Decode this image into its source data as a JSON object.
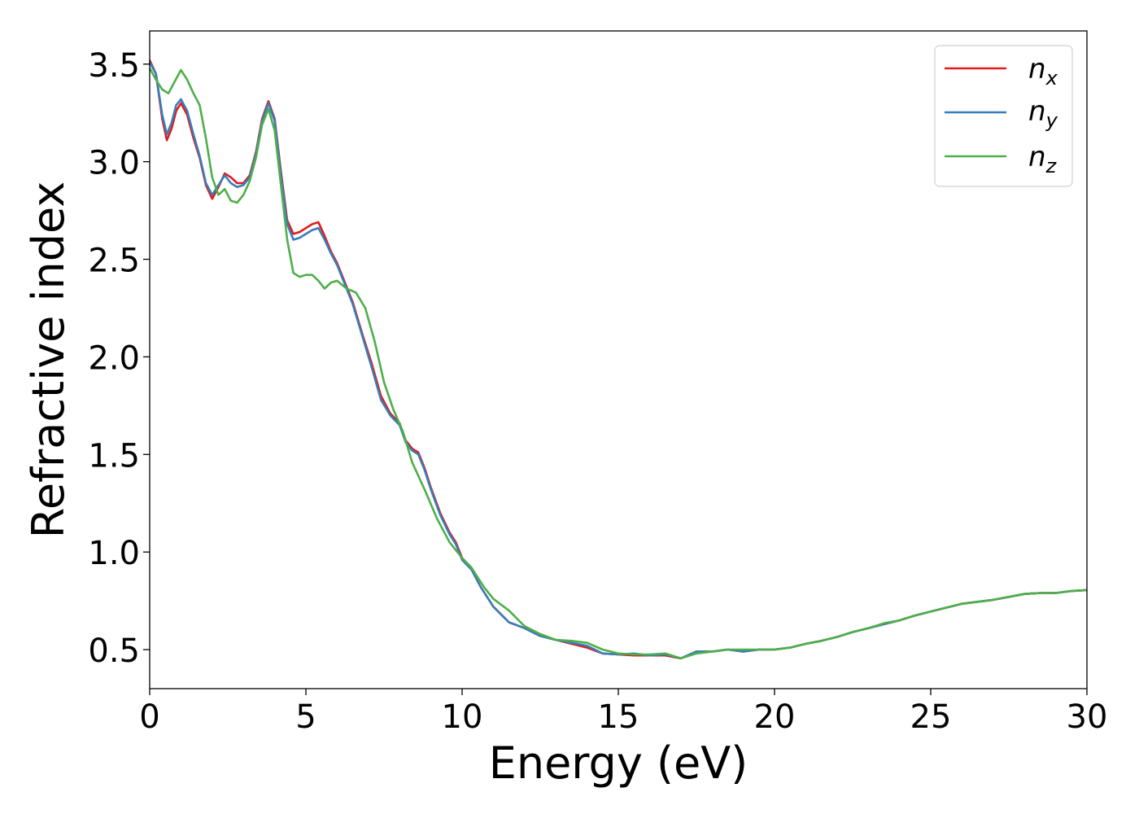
{
  "chart_data": {
    "type": "line",
    "xlabel": "Energy (eV)",
    "ylabel": "Refractive index",
    "xlim": [
      0,
      30
    ],
    "ylim": [
      0.3,
      3.67
    ],
    "xticks": [
      "0",
      "5",
      "10",
      "15",
      "20",
      "25",
      "30"
    ],
    "yticks": [
      "0.5",
      "1.0",
      "1.5",
      "2.0",
      "2.5",
      "3.0",
      "3.5"
    ],
    "grid": false,
    "legend_position": "top-right",
    "series": [
      {
        "name": "n_x",
        "color": "#e41a1c",
        "points": [
          [
            0,
            3.52
          ],
          [
            0.2,
            3.45
          ],
          [
            0.4,
            3.22
          ],
          [
            0.55,
            3.11
          ],
          [
            0.7,
            3.17
          ],
          [
            0.85,
            3.26
          ],
          [
            1.0,
            3.3
          ],
          [
            1.2,
            3.24
          ],
          [
            1.4,
            3.12
          ],
          [
            1.6,
            3.02
          ],
          [
            1.8,
            2.88
          ],
          [
            2.0,
            2.81
          ],
          [
            2.2,
            2.87
          ],
          [
            2.4,
            2.94
          ],
          [
            2.6,
            2.92
          ],
          [
            2.8,
            2.89
          ],
          [
            3.0,
            2.89
          ],
          [
            3.2,
            2.93
          ],
          [
            3.4,
            3.05
          ],
          [
            3.6,
            3.22
          ],
          [
            3.8,
            3.31
          ],
          [
            4.0,
            3.22
          ],
          [
            4.2,
            2.95
          ],
          [
            4.4,
            2.7
          ],
          [
            4.6,
            2.63
          ],
          [
            4.8,
            2.64
          ],
          [
            5.0,
            2.66
          ],
          [
            5.2,
            2.68
          ],
          [
            5.4,
            2.69
          ],
          [
            5.6,
            2.62
          ],
          [
            5.8,
            2.54
          ],
          [
            6.0,
            2.48
          ],
          [
            6.2,
            2.4
          ],
          [
            6.5,
            2.28
          ],
          [
            6.8,
            2.12
          ],
          [
            7.1,
            1.97
          ],
          [
            7.4,
            1.8
          ],
          [
            7.7,
            1.71
          ],
          [
            8.0,
            1.66
          ],
          [
            8.2,
            1.57
          ],
          [
            8.4,
            1.53
          ],
          [
            8.6,
            1.51
          ],
          [
            8.8,
            1.43
          ],
          [
            9.0,
            1.33
          ],
          [
            9.3,
            1.2
          ],
          [
            9.6,
            1.1
          ],
          [
            9.8,
            1.05
          ],
          [
            10.0,
            0.97
          ],
          [
            10.3,
            0.91
          ],
          [
            10.6,
            0.82
          ],
          [
            11.0,
            0.72
          ],
          [
            11.5,
            0.64
          ],
          [
            12.0,
            0.61
          ],
          [
            12.5,
            0.57
          ],
          [
            13.0,
            0.55
          ],
          [
            13.5,
            0.53
          ],
          [
            14.0,
            0.51
          ],
          [
            14.5,
            0.48
          ],
          [
            15.0,
            0.475
          ],
          [
            15.5,
            0.47
          ],
          [
            16.0,
            0.47
          ],
          [
            16.5,
            0.47
          ],
          [
            17.0,
            0.455
          ],
          [
            17.5,
            0.49
          ],
          [
            18.0,
            0.49
          ],
          [
            18.5,
            0.5
          ],
          [
            19.0,
            0.49
          ],
          [
            19.5,
            0.5
          ],
          [
            20.0,
            0.5
          ],
          [
            20.5,
            0.51
          ],
          [
            21.0,
            0.53
          ],
          [
            21.5,
            0.545
          ],
          [
            22.0,
            0.565
          ],
          [
            22.5,
            0.59
          ],
          [
            23.0,
            0.61
          ],
          [
            23.5,
            0.63
          ],
          [
            24.0,
            0.65
          ],
          [
            24.5,
            0.675
          ],
          [
            25.0,
            0.695
          ],
          [
            25.5,
            0.715
          ],
          [
            26.0,
            0.735
          ],
          [
            26.5,
            0.745
          ],
          [
            27.0,
            0.755
          ],
          [
            27.5,
            0.77
          ],
          [
            28.0,
            0.785
          ],
          [
            28.5,
            0.79
          ],
          [
            29.0,
            0.79
          ],
          [
            29.5,
            0.8
          ],
          [
            30.0,
            0.805
          ]
        ]
      },
      {
        "name": "n_y",
        "color": "#377eb8",
        "points": [
          [
            0,
            3.51
          ],
          [
            0.2,
            3.45
          ],
          [
            0.4,
            3.24
          ],
          [
            0.55,
            3.14
          ],
          [
            0.7,
            3.2
          ],
          [
            0.85,
            3.29
          ],
          [
            1.0,
            3.32
          ],
          [
            1.2,
            3.26
          ],
          [
            1.4,
            3.14
          ],
          [
            1.6,
            3.03
          ],
          [
            1.8,
            2.89
          ],
          [
            2.0,
            2.83
          ],
          [
            2.2,
            2.88
          ],
          [
            2.4,
            2.93
          ],
          [
            2.6,
            2.89
          ],
          [
            2.8,
            2.87
          ],
          [
            3.0,
            2.88
          ],
          [
            3.2,
            2.92
          ],
          [
            3.4,
            3.04
          ],
          [
            3.6,
            3.21
          ],
          [
            3.8,
            3.3
          ],
          [
            4.0,
            3.21
          ],
          [
            4.2,
            2.93
          ],
          [
            4.4,
            2.68
          ],
          [
            4.6,
            2.6
          ],
          [
            4.8,
            2.61
          ],
          [
            5.0,
            2.63
          ],
          [
            5.2,
            2.65
          ],
          [
            5.4,
            2.66
          ],
          [
            5.6,
            2.6
          ],
          [
            5.8,
            2.53
          ],
          [
            6.0,
            2.47
          ],
          [
            6.2,
            2.39
          ],
          [
            6.5,
            2.27
          ],
          [
            6.8,
            2.11
          ],
          [
            7.1,
            1.95
          ],
          [
            7.4,
            1.78
          ],
          [
            7.7,
            1.7
          ],
          [
            8.0,
            1.65
          ],
          [
            8.2,
            1.56
          ],
          [
            8.4,
            1.52
          ],
          [
            8.6,
            1.5
          ],
          [
            8.8,
            1.42
          ],
          [
            9.0,
            1.32
          ],
          [
            9.3,
            1.19
          ],
          [
            9.6,
            1.09
          ],
          [
            9.8,
            1.04
          ],
          [
            10.0,
            0.96
          ],
          [
            10.3,
            0.91
          ],
          [
            10.6,
            0.82
          ],
          [
            11.0,
            0.72
          ],
          [
            11.5,
            0.64
          ],
          [
            12.0,
            0.61
          ],
          [
            12.5,
            0.57
          ],
          [
            13.0,
            0.55
          ],
          [
            13.5,
            0.535
          ],
          [
            14.0,
            0.52
          ],
          [
            14.5,
            0.48
          ],
          [
            15.0,
            0.475
          ],
          [
            15.5,
            0.48
          ],
          [
            16.0,
            0.47
          ],
          [
            16.5,
            0.475
          ],
          [
            17.0,
            0.455
          ],
          [
            17.5,
            0.49
          ],
          [
            18.0,
            0.49
          ],
          [
            18.5,
            0.5
          ],
          [
            19.0,
            0.49
          ],
          [
            19.5,
            0.5
          ],
          [
            20.0,
            0.5
          ],
          [
            20.5,
            0.51
          ],
          [
            21.0,
            0.53
          ],
          [
            21.5,
            0.545
          ],
          [
            22.0,
            0.565
          ],
          [
            22.5,
            0.59
          ],
          [
            23.0,
            0.61
          ],
          [
            23.5,
            0.63
          ],
          [
            24.0,
            0.65
          ],
          [
            24.5,
            0.675
          ],
          [
            25.0,
            0.695
          ],
          [
            25.5,
            0.715
          ],
          [
            26.0,
            0.735
          ],
          [
            26.5,
            0.745
          ],
          [
            27.0,
            0.755
          ],
          [
            27.5,
            0.77
          ],
          [
            28.0,
            0.785
          ],
          [
            28.5,
            0.79
          ],
          [
            29.0,
            0.79
          ],
          [
            29.5,
            0.8
          ],
          [
            30.0,
            0.805
          ]
        ]
      },
      {
        "name": "n_z",
        "color": "#4daf4a",
        "points": [
          [
            0,
            3.48
          ],
          [
            0.2,
            3.42
          ],
          [
            0.4,
            3.37
          ],
          [
            0.6,
            3.35
          ],
          [
            0.8,
            3.41
          ],
          [
            1.0,
            3.47
          ],
          [
            1.2,
            3.42
          ],
          [
            1.4,
            3.35
          ],
          [
            1.6,
            3.29
          ],
          [
            1.8,
            3.12
          ],
          [
            2.0,
            2.92
          ],
          [
            2.2,
            2.83
          ],
          [
            2.4,
            2.86
          ],
          [
            2.6,
            2.8
          ],
          [
            2.8,
            2.79
          ],
          [
            3.0,
            2.83
          ],
          [
            3.2,
            2.9
          ],
          [
            3.4,
            3.02
          ],
          [
            3.6,
            3.19
          ],
          [
            3.8,
            3.27
          ],
          [
            4.0,
            3.16
          ],
          [
            4.2,
            2.88
          ],
          [
            4.4,
            2.6
          ],
          [
            4.6,
            2.43
          ],
          [
            4.8,
            2.41
          ],
          [
            5.0,
            2.42
          ],
          [
            5.2,
            2.42
          ],
          [
            5.4,
            2.39
          ],
          [
            5.6,
            2.35
          ],
          [
            5.8,
            2.38
          ],
          [
            6.0,
            2.39
          ],
          [
            6.3,
            2.35
          ],
          [
            6.6,
            2.33
          ],
          [
            6.9,
            2.25
          ],
          [
            7.2,
            2.08
          ],
          [
            7.5,
            1.87
          ],
          [
            7.8,
            1.73
          ],
          [
            8.1,
            1.62
          ],
          [
            8.4,
            1.46
          ],
          [
            8.8,
            1.32
          ],
          [
            9.2,
            1.17
          ],
          [
            9.6,
            1.05
          ],
          [
            10.0,
            0.97
          ],
          [
            10.3,
            0.92
          ],
          [
            10.7,
            0.82
          ],
          [
            11.0,
            0.76
          ],
          [
            11.5,
            0.7
          ],
          [
            12.0,
            0.62
          ],
          [
            12.5,
            0.58
          ],
          [
            13.0,
            0.55
          ],
          [
            13.5,
            0.545
          ],
          [
            14.0,
            0.535
          ],
          [
            14.5,
            0.5
          ],
          [
            15.0,
            0.48
          ],
          [
            15.5,
            0.475
          ],
          [
            16.0,
            0.475
          ],
          [
            16.5,
            0.48
          ],
          [
            17.0,
            0.455
          ],
          [
            17.5,
            0.48
          ],
          [
            18.0,
            0.49
          ],
          [
            18.5,
            0.5
          ],
          [
            19.0,
            0.5
          ],
          [
            19.5,
            0.5
          ],
          [
            20.0,
            0.5
          ],
          [
            20.5,
            0.51
          ],
          [
            21.0,
            0.53
          ],
          [
            21.5,
            0.545
          ],
          [
            22.0,
            0.565
          ],
          [
            22.5,
            0.59
          ],
          [
            23.0,
            0.61
          ],
          [
            23.5,
            0.635
          ],
          [
            24.0,
            0.65
          ],
          [
            24.5,
            0.675
          ],
          [
            25.0,
            0.695
          ],
          [
            25.5,
            0.715
          ],
          [
            26.0,
            0.735
          ],
          [
            26.5,
            0.745
          ],
          [
            27.0,
            0.755
          ],
          [
            27.5,
            0.77
          ],
          [
            28.0,
            0.785
          ],
          [
            28.5,
            0.79
          ],
          [
            29.0,
            0.79
          ],
          [
            29.5,
            0.8
          ],
          [
            30.0,
            0.805
          ]
        ]
      }
    ]
  },
  "legend": {
    "items": [
      {
        "base": "n",
        "sub": "x",
        "color": "#e41a1c"
      },
      {
        "base": "n",
        "sub": "y",
        "color": "#377eb8"
      },
      {
        "base": "n",
        "sub": "z",
        "color": "#4daf4a"
      }
    ]
  }
}
